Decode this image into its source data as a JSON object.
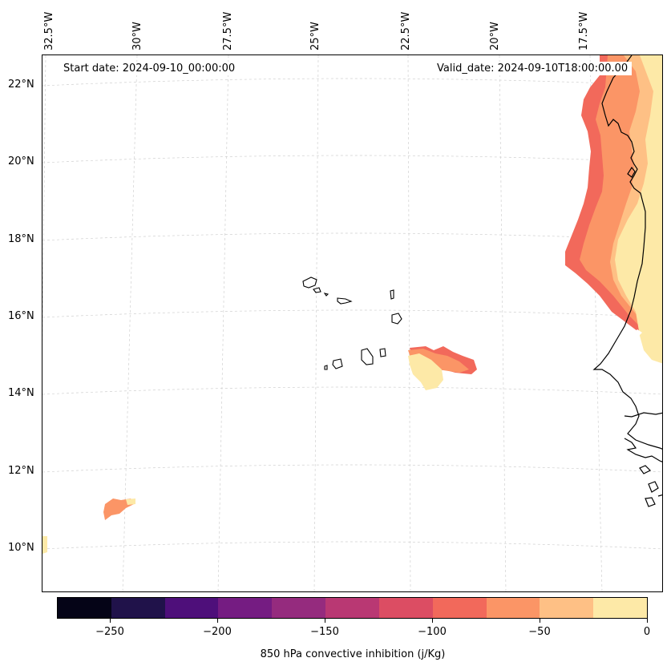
{
  "map": {
    "longitude_labels": [
      "32.5°W",
      "30°W",
      "27.5°W",
      "25°W",
      "22.5°W",
      "20°W",
      "17.5°W"
    ],
    "latitude_labels": [
      "22°N",
      "20°N",
      "18°N",
      "16°N",
      "14°N",
      "12°N",
      "10°N"
    ],
    "start_date": "Start date: 2024-09-10_00:00:00",
    "valid_date": "Valid_date: 2024-09-10T18:00:00.00"
  },
  "colorbar": {
    "title": "850 hPa convective inhibition (j/Kg)",
    "tick_labels": [
      "−250",
      "−200",
      "−150",
      "−100",
      "−50",
      "0"
    ],
    "range": [
      -275,
      0
    ],
    "colors": [
      "#050417",
      "#20124a",
      "#4e0f7a",
      "#751c82",
      "#952b7e",
      "#b93873",
      "#dc4d63",
      "#f2695b",
      "#fb9566",
      "#fec085",
      "#fde9a7"
    ]
  },
  "colors": {
    "land_outline": "#000000",
    "gridline": "#cccccc"
  }
}
